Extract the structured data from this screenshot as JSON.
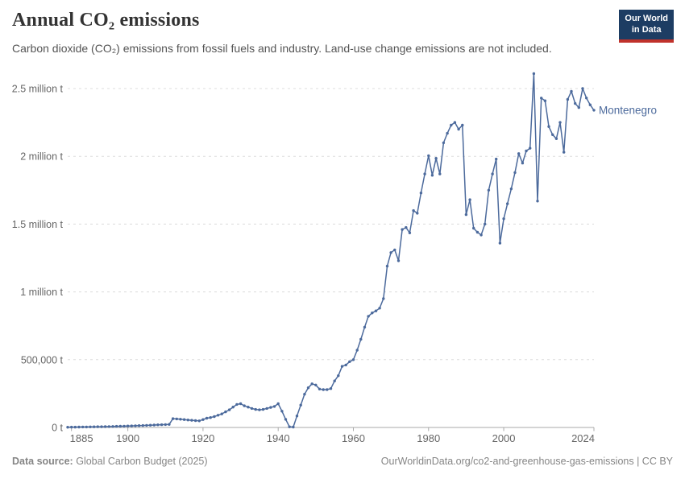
{
  "header": {
    "title": "Annual CO₂ emissions",
    "subtitle": "Carbon dioxide (CO₂) emissions from fossil fuels and industry. Land-use change emissions are not included.",
    "logo": {
      "line1": "Our World",
      "line2": "in Data"
    }
  },
  "footer": {
    "datasource_label": "Data source:",
    "datasource": "Global Carbon Budget (2025)",
    "link": "OurWorldinData.org/co2-and-greenhouse-gas-emissions | CC BY"
  },
  "colors": {
    "line": "#4C6A9C",
    "entity_label": "#4C6A9C",
    "grid": "#dcdcdc",
    "axis": "#a9a9a9",
    "tick_text": "#666666",
    "logo_bg": "#1d3d63",
    "logo_accent": "#c0322b"
  },
  "chart_data": {
    "type": "line",
    "title": "Annual CO₂ emissions",
    "unit": "t",
    "entity": "Montenegro",
    "grid": "horizontal-dashed",
    "legend_position": "end-of-line",
    "xlim": [
      1884,
      2024
    ],
    "ylim": [
      0,
      2500000
    ],
    "x_ticks": [
      {
        "year": 1885,
        "label": "1885"
      },
      {
        "year": 1900,
        "label": "1900"
      },
      {
        "year": 1920,
        "label": "1920"
      },
      {
        "year": 1940,
        "label": "1940"
      },
      {
        "year": 1960,
        "label": "1960"
      },
      {
        "year": 1980,
        "label": "1980"
      },
      {
        "year": 2000,
        "label": "2000"
      },
      {
        "year": 2024,
        "label": "2024"
      }
    ],
    "y_ticks": [
      {
        "value": 0,
        "label": "0 t"
      },
      {
        "value": 500000,
        "label": "500,000 t"
      },
      {
        "value": 1000000,
        "label": "1 million t"
      },
      {
        "value": 1500000,
        "label": "1.5 million t"
      },
      {
        "value": 2000000,
        "label": "2 million t"
      },
      {
        "value": 2500000,
        "label": "2.5 million t"
      }
    ],
    "series": [
      {
        "name": "Montenegro",
        "color": "#4C6A9C",
        "points": [
          [
            1884,
            2000
          ],
          [
            1885,
            2300
          ],
          [
            1886,
            2600
          ],
          [
            1887,
            2900
          ],
          [
            1888,
            3300
          ],
          [
            1889,
            3700
          ],
          [
            1890,
            4100
          ],
          [
            1891,
            4600
          ],
          [
            1892,
            5100
          ],
          [
            1893,
            5600
          ],
          [
            1894,
            6200
          ],
          [
            1895,
            6800
          ],
          [
            1896,
            7400
          ],
          [
            1897,
            8100
          ],
          [
            1898,
            8800
          ],
          [
            1899,
            9600
          ],
          [
            1900,
            10400
          ],
          [
            1901,
            11300
          ],
          [
            1902,
            12300
          ],
          [
            1903,
            13400
          ],
          [
            1904,
            14500
          ],
          [
            1905,
            15700
          ],
          [
            1906,
            16900
          ],
          [
            1907,
            18100
          ],
          [
            1908,
            19300
          ],
          [
            1909,
            20400
          ],
          [
            1910,
            21400
          ],
          [
            1911,
            22400
          ],
          [
            1912,
            65000
          ],
          [
            1913,
            63000
          ],
          [
            1914,
            60500
          ],
          [
            1915,
            58000
          ],
          [
            1916,
            55500
          ],
          [
            1917,
            53000
          ],
          [
            1918,
            50500
          ],
          [
            1919,
            48500
          ],
          [
            1920,
            58000
          ],
          [
            1921,
            68000
          ],
          [
            1922,
            73000
          ],
          [
            1923,
            80000
          ],
          [
            1924,
            90000
          ],
          [
            1925,
            100000
          ],
          [
            1926,
            115000
          ],
          [
            1927,
            130000
          ],
          [
            1928,
            150000
          ],
          [
            1929,
            170000
          ],
          [
            1930,
            175000
          ],
          [
            1931,
            160000
          ],
          [
            1932,
            150000
          ],
          [
            1933,
            140000
          ],
          [
            1934,
            133000
          ],
          [
            1935,
            130000
          ],
          [
            1936,
            133000
          ],
          [
            1937,
            140000
          ],
          [
            1938,
            148000
          ],
          [
            1939,
            155000
          ],
          [
            1940,
            175000
          ],
          [
            1941,
            120000
          ],
          [
            1942,
            60000
          ],
          [
            1943,
            5000
          ],
          [
            1944,
            3000
          ],
          [
            1945,
            85000
          ],
          [
            1946,
            165000
          ],
          [
            1947,
            245000
          ],
          [
            1948,
            293000
          ],
          [
            1949,
            322000
          ],
          [
            1950,
            313000
          ],
          [
            1951,
            283000
          ],
          [
            1952,
            279000
          ],
          [
            1953,
            279000
          ],
          [
            1954,
            287000
          ],
          [
            1955,
            343000
          ],
          [
            1956,
            382000
          ],
          [
            1957,
            451000
          ],
          [
            1958,
            461000
          ],
          [
            1959,
            485000
          ],
          [
            1960,
            500000
          ],
          [
            1961,
            570000
          ],
          [
            1962,
            650000
          ],
          [
            1963,
            740000
          ],
          [
            1964,
            820000
          ],
          [
            1965,
            845000
          ],
          [
            1966,
            860000
          ],
          [
            1967,
            880000
          ],
          [
            1968,
            950000
          ],
          [
            1969,
            1190000
          ],
          [
            1970,
            1290000
          ],
          [
            1971,
            1310000
          ],
          [
            1972,
            1230000
          ],
          [
            1973,
            1460000
          ],
          [
            1974,
            1475000
          ],
          [
            1975,
            1435000
          ],
          [
            1976,
            1600000
          ],
          [
            1977,
            1580000
          ],
          [
            1978,
            1730000
          ],
          [
            1979,
            1870000
          ],
          [
            1980,
            2005000
          ],
          [
            1981,
            1860000
          ],
          [
            1982,
            1985000
          ],
          [
            1983,
            1870000
          ],
          [
            1984,
            2100000
          ],
          [
            1985,
            2170000
          ],
          [
            1986,
            2230000
          ],
          [
            1987,
            2250000
          ],
          [
            1988,
            2200000
          ],
          [
            1989,
            2230000
          ],
          [
            1990,
            1570000
          ],
          [
            1991,
            1680000
          ],
          [
            1992,
            1470000
          ],
          [
            1993,
            1440000
          ],
          [
            1994,
            1420000
          ],
          [
            1995,
            1500000
          ],
          [
            1996,
            1750000
          ],
          [
            1997,
            1870000
          ],
          [
            1998,
            1980000
          ],
          [
            1999,
            1360000
          ],
          [
            2000,
            1540000
          ],
          [
            2001,
            1650000
          ],
          [
            2002,
            1760000
          ],
          [
            2003,
            1880000
          ],
          [
            2004,
            2020000
          ],
          [
            2005,
            1950000
          ],
          [
            2006,
            2040000
          ],
          [
            2007,
            2060000
          ],
          [
            2008,
            2610000
          ],
          [
            2009,
            1670000
          ],
          [
            2010,
            2430000
          ],
          [
            2011,
            2410000
          ],
          [
            2012,
            2220000
          ],
          [
            2013,
            2160000
          ],
          [
            2014,
            2130000
          ],
          [
            2015,
            2250000
          ],
          [
            2016,
            2030000
          ],
          [
            2017,
            2420000
          ],
          [
            2018,
            2480000
          ],
          [
            2019,
            2390000
          ],
          [
            2020,
            2360000
          ],
          [
            2021,
            2500000
          ],
          [
            2022,
            2430000
          ],
          [
            2023,
            2380000
          ],
          [
            2024,
            2340000
          ]
        ]
      }
    ]
  }
}
